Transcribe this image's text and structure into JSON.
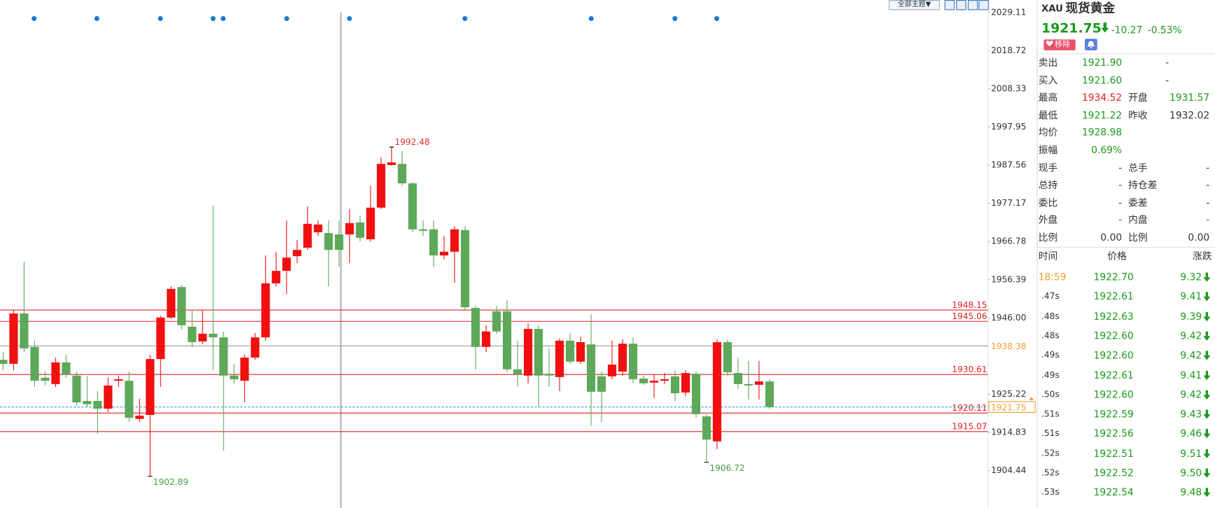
{
  "toolbar": {
    "theme_button": "全部主题▼"
  },
  "chart_data": {
    "type": "candlestick",
    "open": [
      1934.6,
      1933.5,
      1947.2,
      1938.1,
      1929.7,
      1928.0,
      1933.9,
      1930.3,
      1923.4,
      1923.4,
      1921.3,
      1928.9,
      1928.9,
      1918.5,
      1919.6,
      1934.8,
      1946.1,
      1954.4,
      1943.6,
      1939.6,
      1941.7,
      1940.7,
      1930.3,
      1928.9,
      1935.2,
      1940.7,
      1955.4,
      1958.8,
      1962.8,
      1965.1,
      1969.3,
      1969.1,
      1968.7,
      1968.7,
      1972.0,
      1967.4,
      1976.0,
      1987.6,
      1987.9,
      1982.6,
      1970.1,
      1970.1,
      1963.0,
      1964.0,
      1969.9,
      1948.7,
      1938.1,
      1947.8,
      1947.8,
      1932.0,
      1930.3,
      1943.0,
      1930.8,
      1929.9,
      1939.8,
      1934.1,
      1938.8,
      1930.1,
      1930.1,
      1931.4,
      1939.0,
      1929.5,
      1928.4,
      1928.9,
      1930.1,
      1925.7,
      1930.8,
      1919.2,
      1912.4,
      1939.4,
      1931.0,
      1928.0,
      1927.8,
      1928.7
    ],
    "high": [
      1936.7,
      1948.2,
      1961.3,
      1939.8,
      1931.4,
      1935.2,
      1936.0,
      1931.4,
      1930.1,
      1926.1,
      1929.7,
      1930.3,
      1931.4,
      1924.0,
      1936.0,
      1946.6,
      1954.6,
      1955.0,
      1948.2,
      1948.2,
      1976.5,
      1942.3,
      1933.5,
      1936.0,
      1941.9,
      1963.0,
      1964.0,
      1972.5,
      1967.2,
      1976.3,
      1972.5,
      1972.5,
      1972.5,
      1975.6,
      1973.9,
      1981.9,
      1989.7,
      1992.48,
      1991.4,
      1983.0,
      1972.5,
      1972.5,
      1968.3,
      1971.0,
      1971.0,
      1949.3,
      1944.0,
      1949.3,
      1950.8,
      1939.8,
      1944.5,
      1944.0,
      1937.7,
      1940.4,
      1941.9,
      1940.9,
      1947.0,
      1931.4,
      1939.8,
      1940.2,
      1940.7,
      1930.3,
      1930.6,
      1931.0,
      1931.8,
      1931.8,
      1931.4,
      1919.8,
      1940.2,
      1940.2,
      1935.2,
      1934.3,
      1934.3,
      1929.3
    ],
    "low": [
      1931.8,
      1931.8,
      1936.7,
      1927.2,
      1927.6,
      1927.2,
      1929.7,
      1922.1,
      1921.9,
      1914.5,
      1920.4,
      1927.2,
      1917.7,
      1917.7,
      1902.89,
      1927.2,
      1945.7,
      1942.8,
      1938.1,
      1938.8,
      1931.8,
      1909.9,
      1928.2,
      1923.0,
      1934.6,
      1939.8,
      1954.6,
      1952.5,
      1960.9,
      1964.5,
      1968.3,
      1954.6,
      1959.8,
      1960.9,
      1966.8,
      1966.8,
      1975.6,
      1987.4,
      1981.9,
      1969.3,
      1968.3,
      1959.8,
      1962.0,
      1955.6,
      1948.2,
      1932.0,
      1936.7,
      1941.7,
      1931.4,
      1927.2,
      1928.2,
      1921.9,
      1927.2,
      1926.1,
      1933.5,
      1933.5,
      1916.7,
      1917.7,
      1929.3,
      1930.3,
      1928.2,
      1927.8,
      1924.2,
      1928.0,
      1923.4,
      1924.7,
      1918.8,
      1906.72,
      1910.3,
      1930.3,
      1926.7,
      1923.8,
      1923.8,
      1921.3
    ],
    "close": [
      1933.5,
      1947.2,
      1937.7,
      1928.9,
      1928.9,
      1933.9,
      1930.6,
      1923.0,
      1922.5,
      1921.3,
      1927.6,
      1929.3,
      1918.8,
      1919.4,
      1934.8,
      1946.1,
      1953.9,
      1944.0,
      1939.4,
      1941.7,
      1940.7,
      1930.3,
      1929.3,
      1935.2,
      1940.7,
      1955.4,
      1958.8,
      1962.4,
      1964.5,
      1971.6,
      1971.4,
      1964.5,
      1964.5,
      1971.8,
      1967.8,
      1976.0,
      1987.9,
      1988.3,
      1982.6,
      1970.1,
      1969.7,
      1963.0,
      1964.0,
      1970.1,
      1948.9,
      1938.1,
      1942.3,
      1942.3,
      1932.0,
      1930.6,
      1943.0,
      1930.3,
      1930.3,
      1939.8,
      1934.1,
      1939.4,
      1925.9,
      1925.9,
      1933.3,
      1939.0,
      1929.3,
      1928.2,
      1928.9,
      1929.3,
      1925.5,
      1931.0,
      1919.8,
      1912.9,
      1939.4,
      1931.2,
      1928.0,
      1927.6,
      1928.7,
      1921.75
    ],
    "up_color": "#f01010",
    "down_color": "#5ea85a",
    "ylim": [
      1894.3,
      2032.5
    ],
    "yticks": [
      2029.11,
      2018.72,
      2008.33,
      1997.95,
      1987.56,
      1977.17,
      1966.78,
      1956.39,
      {
        "value": 1946,
        "label": "1946.00"
      },
      1925.22,
      1914.83,
      1904.44
    ],
    "grid": false,
    "levels": [
      {
        "value": 1948.15,
        "color": "#e02020"
      },
      {
        "value": 1945.06,
        "color": "#e02020"
      },
      {
        "value": 1930.61,
        "color": "#e02020"
      },
      {
        "value": 1920.11,
        "color": "#e02020"
      },
      {
        "value": 1915.07,
        "color": "#e02020"
      }
    ],
    "reference_line": {
      "value": 1938.38,
      "color": "#9a9a9a",
      "label_color": "#f0a030"
    },
    "current_price": {
      "value": 1921.75,
      "color": "#3a9ad9",
      "label_color": "#f0a030"
    },
    "extreme_labels": [
      {
        "value": 1992.48,
        "color": "#e03030"
      },
      {
        "value": 1902.89,
        "color": "#4a9a44"
      },
      {
        "value": 1906.72,
        "color": "#4a9a44"
      }
    ]
  },
  "quote": {
    "symbol": "XAU",
    "name": "现货黄金",
    "price": "1921.75",
    "change": "-10.27",
    "change_pct": "-0.53%",
    "remove_button": "移除"
  },
  "stats": [
    {
      "label": "卖出",
      "value": "1921.90",
      "value2": "-"
    },
    {
      "label": "买入",
      "value": "1921.60",
      "value2": "-"
    },
    {
      "label": "最高",
      "value": "1934.52",
      "label2": "开盘",
      "value2": "1931.57"
    },
    {
      "label": "最低",
      "value": "1921.22",
      "label2": "昨收",
      "value2": "1932.02"
    },
    {
      "label": "均价",
      "value": "1928.98"
    },
    {
      "label": "振幅",
      "value": "0.69%"
    },
    {
      "label": "现手",
      "value": "-",
      "label2": "总手",
      "value2": "-"
    },
    {
      "label": "总持",
      "value": "-",
      "label2": "持仓差",
      "value2": "-"
    },
    {
      "label": "委比",
      "value": "-",
      "label2": "委差",
      "value2": "-"
    },
    {
      "label": "外盘",
      "value": "-",
      "label2": "内盘",
      "value2": "-"
    },
    {
      "label": "比例",
      "value": "0.00",
      "label2": "比例",
      "value2": "0.00"
    }
  ],
  "ticks_table": {
    "header": [
      "时间",
      "价格",
      "涨跌"
    ],
    "rows": [
      [
        "18:59",
        "1922.70",
        "9.32"
      ],
      [
        ".47s",
        "1922.61",
        "9.41"
      ],
      [
        ".48s",
        "1922.63",
        "9.39"
      ],
      [
        ".48s",
        "1922.60",
        "9.42"
      ],
      [
        ".49s",
        "1922.60",
        "9.42"
      ],
      [
        ".49s",
        "1922.61",
        "9.41"
      ],
      [
        ".50s",
        "1922.60",
        "9.42"
      ],
      [
        ".51s",
        "1922.59",
        "9.43"
      ],
      [
        ".51s",
        "1922.56",
        "9.46"
      ],
      [
        ".52s",
        "1922.51",
        "9.51"
      ],
      [
        ".52s",
        "1922.52",
        "9.50"
      ],
      [
        ".53s",
        "1922.54",
        "9.48"
      ]
    ]
  }
}
